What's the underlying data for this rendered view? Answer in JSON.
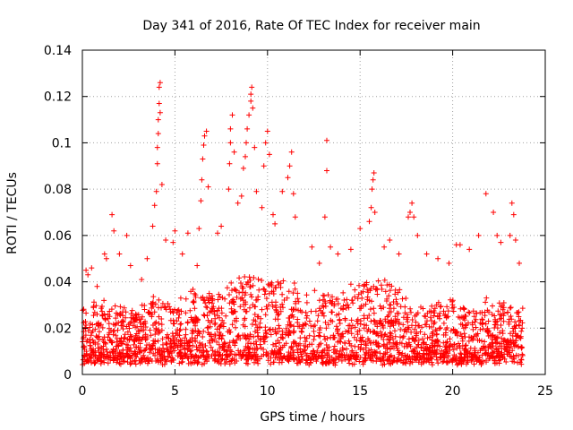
{
  "chart_data": {
    "type": "scatter",
    "title": "Day 341 of 2016, Rate Of TEC Index for receiver main",
    "xlabel": "GPS time / hours",
    "ylabel": "ROTI / TECUs",
    "xlim": [
      0,
      25
    ],
    "ylim": [
      0,
      0.14
    ],
    "grid": true,
    "marker": "+",
    "series": [
      {
        "name": "ROTI",
        "color": "#ff0000",
        "points": [
          [
            0.2,
            0.045
          ],
          [
            0.3,
            0.043
          ],
          [
            0.5,
            0.046
          ],
          [
            0.8,
            0.038
          ],
          [
            1.2,
            0.052
          ],
          [
            1.3,
            0.05
          ],
          [
            1.6,
            0.069
          ],
          [
            1.7,
            0.062
          ],
          [
            2.0,
            0.052
          ],
          [
            2.4,
            0.06
          ],
          [
            2.6,
            0.047
          ],
          [
            3.2,
            0.041
          ],
          [
            3.5,
            0.05
          ],
          [
            3.8,
            0.064
          ],
          [
            3.9,
            0.073
          ],
          [
            4.0,
            0.079
          ],
          [
            4.05,
            0.091
          ],
          [
            4.05,
            0.098
          ],
          [
            4.1,
            0.104
          ],
          [
            4.1,
            0.11
          ],
          [
            4.15,
            0.117
          ],
          [
            4.15,
            0.124
          ],
          [
            4.2,
            0.126
          ],
          [
            4.2,
            0.113
          ],
          [
            4.3,
            0.082
          ],
          [
            4.5,
            0.058
          ],
          [
            4.9,
            0.057
          ],
          [
            5.0,
            0.062
          ],
          [
            5.4,
            0.052
          ],
          [
            5.7,
            0.061
          ],
          [
            6.2,
            0.047
          ],
          [
            6.3,
            0.063
          ],
          [
            6.4,
            0.075
          ],
          [
            6.45,
            0.084
          ],
          [
            6.5,
            0.093
          ],
          [
            6.55,
            0.099
          ],
          [
            6.6,
            0.103
          ],
          [
            6.7,
            0.105
          ],
          [
            6.8,
            0.081
          ],
          [
            7.3,
            0.061
          ],
          [
            7.5,
            0.064
          ],
          [
            7.9,
            0.08
          ],
          [
            7.95,
            0.091
          ],
          [
            8.0,
            0.1
          ],
          [
            8.0,
            0.106
          ],
          [
            8.1,
            0.112
          ],
          [
            8.2,
            0.096
          ],
          [
            8.4,
            0.074
          ],
          [
            8.6,
            0.077
          ],
          [
            8.7,
            0.089
          ],
          [
            8.8,
            0.094
          ],
          [
            8.85,
            0.1
          ],
          [
            8.9,
            0.106
          ],
          [
            9.0,
            0.112
          ],
          [
            9.1,
            0.118
          ],
          [
            9.1,
            0.121
          ],
          [
            9.15,
            0.124
          ],
          [
            9.2,
            0.115
          ],
          [
            9.3,
            0.098
          ],
          [
            9.4,
            0.079
          ],
          [
            9.7,
            0.072
          ],
          [
            9.8,
            0.09
          ],
          [
            9.9,
            0.1
          ],
          [
            10.0,
            0.105
          ],
          [
            10.1,
            0.095
          ],
          [
            10.3,
            0.069
          ],
          [
            10.4,
            0.065
          ],
          [
            10.8,
            0.079
          ],
          [
            11.1,
            0.085
          ],
          [
            11.2,
            0.09
          ],
          [
            11.3,
            0.096
          ],
          [
            11.4,
            0.078
          ],
          [
            11.5,
            0.068
          ],
          [
            12.4,
            0.055
          ],
          [
            12.8,
            0.048
          ],
          [
            13.1,
            0.068
          ],
          [
            13.2,
            0.088
          ],
          [
            13.2,
            0.101
          ],
          [
            13.4,
            0.055
          ],
          [
            13.8,
            0.052
          ],
          [
            14.5,
            0.054
          ],
          [
            15.0,
            0.063
          ],
          [
            15.5,
            0.066
          ],
          [
            15.6,
            0.072
          ],
          [
            15.65,
            0.08
          ],
          [
            15.7,
            0.084
          ],
          [
            15.75,
            0.087
          ],
          [
            15.8,
            0.07
          ],
          [
            16.3,
            0.055
          ],
          [
            16.6,
            0.058
          ],
          [
            17.1,
            0.052
          ],
          [
            17.6,
            0.068
          ],
          [
            17.7,
            0.07
          ],
          [
            17.8,
            0.074
          ],
          [
            17.9,
            0.068
          ],
          [
            18.1,
            0.06
          ],
          [
            18.6,
            0.052
          ],
          [
            19.2,
            0.05
          ],
          [
            19.8,
            0.048
          ],
          [
            20.2,
            0.056
          ],
          [
            20.4,
            0.056
          ],
          [
            20.9,
            0.054
          ],
          [
            21.4,
            0.06
          ],
          [
            21.8,
            0.078
          ],
          [
            22.2,
            0.07
          ],
          [
            22.4,
            0.06
          ],
          [
            22.6,
            0.057
          ],
          [
            23.1,
            0.06
          ],
          [
            23.2,
            0.074
          ],
          [
            23.3,
            0.069
          ],
          [
            23.4,
            0.058
          ],
          [
            23.6,
            0.048
          ]
        ],
        "dense_band": {
          "x_range": [
            0,
            23.8
          ],
          "envelope_x": [
            0,
            1,
            2,
            3,
            4,
            5,
            6,
            7,
            8,
            9,
            10,
            11,
            12,
            13,
            14,
            15,
            16,
            17,
            18,
            19,
            20,
            21,
            22,
            23,
            23.8
          ],
          "envelope_y": [
            0.03,
            0.032,
            0.03,
            0.028,
            0.034,
            0.03,
            0.036,
            0.034,
            0.042,
            0.046,
            0.042,
            0.04,
            0.036,
            0.034,
            0.036,
            0.04,
            0.042,
            0.038,
            0.028,
            0.03,
            0.032,
            0.028,
            0.034,
            0.03,
            0.03
          ],
          "baseline_y": 0.006,
          "point_count": 2400
        }
      }
    ],
    "x_ticks": [
      {
        "value": 0,
        "label": "0"
      },
      {
        "value": 5,
        "label": "5"
      },
      {
        "value": 10,
        "label": "10"
      },
      {
        "value": 15,
        "label": "15"
      },
      {
        "value": 20,
        "label": "20"
      },
      {
        "value": 25,
        "label": "25"
      }
    ],
    "y_ticks": [
      {
        "value": 0,
        "label": "0"
      },
      {
        "value": 0.02,
        "label": "0.02"
      },
      {
        "value": 0.04,
        "label": "0.04"
      },
      {
        "value": 0.06,
        "label": "0.06"
      },
      {
        "value": 0.08,
        "label": "0.08"
      },
      {
        "value": 0.1,
        "label": "0.1"
      },
      {
        "value": 0.12,
        "label": "0.12"
      },
      {
        "value": 0.14,
        "label": "0.14"
      }
    ]
  }
}
